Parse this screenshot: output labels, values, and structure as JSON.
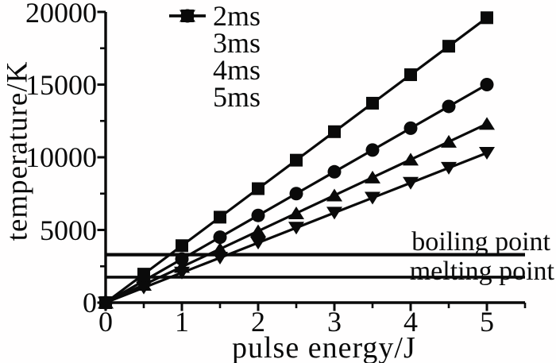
{
  "figure": {
    "background_color": "#ffffff",
    "ink_color": "#0a0a0a"
  },
  "chart_data": {
    "type": "line",
    "title": "",
    "xlabel": "pulse energy/J",
    "ylabel": "temperature/K",
    "xlim": [
      0,
      5.5
    ],
    "ylim": [
      0,
      20000
    ],
    "grid": false,
    "legend_position": "top-left-inside",
    "x": [
      0,
      0.5,
      1,
      1.5,
      2,
      2.5,
      3,
      3.5,
      4,
      4.5,
      5
    ],
    "series": [
      {
        "name": "2ms",
        "marker": "square",
        "values": [
          0,
          1960,
          3920,
          5880,
          7840,
          9800,
          11760,
          13720,
          15680,
          17640,
          19600
        ]
      },
      {
        "name": "3ms",
        "marker": "circle",
        "values": [
          0,
          1500,
          3000,
          4500,
          6000,
          7500,
          9000,
          10500,
          12000,
          13500,
          15000
        ]
      },
      {
        "name": "4ms",
        "marker": "triangle-up",
        "values": [
          0,
          1230,
          2460,
          3690,
          4920,
          6150,
          7380,
          8610,
          9840,
          11070,
          12300
        ]
      },
      {
        "name": "5ms",
        "marker": "triangle-down",
        "values": [
          0,
          1030,
          2060,
          3090,
          4120,
          5150,
          6180,
          7210,
          8240,
          9270,
          10300
        ]
      }
    ],
    "reference_lines": [
      {
        "label": "boiling point",
        "y": 3300
      },
      {
        "label": "melting point",
        "y": 1750
      }
    ],
    "x_ticks": [
      0,
      1,
      2,
      3,
      4,
      5
    ],
    "x_tick_labels": [
      "0",
      "1",
      "2",
      "3",
      "4",
      "5"
    ],
    "x_minor_ticks": [
      0.5,
      1.5,
      2.5,
      3.5,
      4.5,
      5.5
    ],
    "y_ticks": [
      0,
      5000,
      10000,
      15000,
      20000
    ],
    "y_tick_labels": [
      "0",
      "5000",
      "10000",
      "15000",
      "20000"
    ],
    "y_minor_ticks": [
      2500,
      7500,
      12500,
      17500
    ]
  }
}
